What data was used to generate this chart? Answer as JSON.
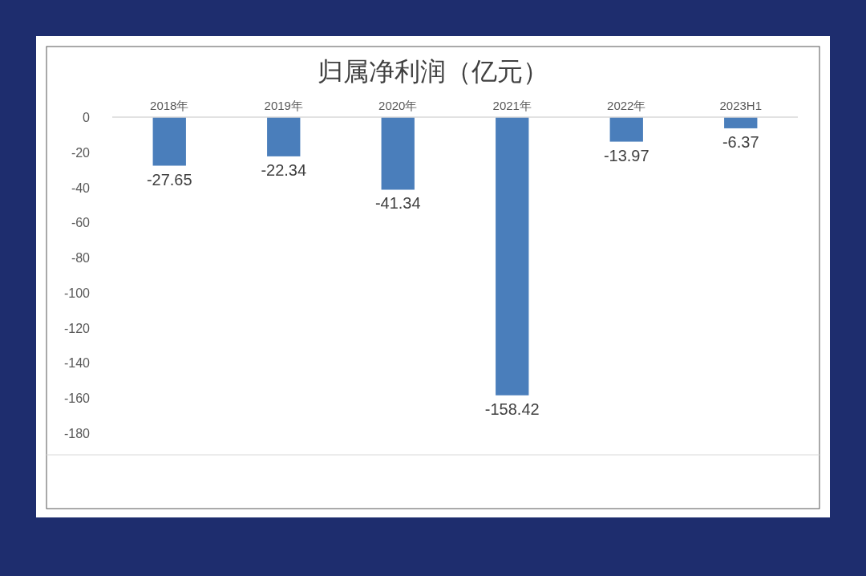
{
  "chart_data": {
    "type": "bar",
    "title": "归属净利润（亿元）",
    "categories": [
      "2018年",
      "2019年",
      "2020年",
      "2021年",
      "2022年",
      "2023H1"
    ],
    "values": [
      -27.65,
      -22.34,
      -41.34,
      -158.42,
      -13.97,
      -6.37
    ],
    "color": "#4a7ebb",
    "ylim": [
      -180,
      0
    ],
    "yticks": [
      0,
      -20,
      -40,
      -60,
      -80,
      -100,
      -120,
      -140,
      -160,
      -180
    ],
    "grid": false,
    "data_labels": true
  }
}
